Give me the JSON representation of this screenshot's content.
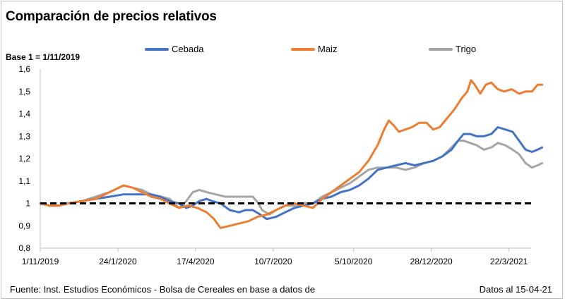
{
  "chart_data": {
    "type": "line",
    "title": "Comparación de precios relativos",
    "base_note": "Base 1 = 1/11/2019",
    "xlabel": "",
    "ylabel": "",
    "ylim": [
      0.8,
      1.6
    ],
    "y_ticks": [
      "0,8",
      "0,9",
      "1",
      "1,1",
      "1,2",
      "1,3",
      "1,4",
      "1,5",
      "1,6"
    ],
    "y_tick_values": [
      0.8,
      0.9,
      1.0,
      1.1,
      1.2,
      1.3,
      1.4,
      1.5,
      1.6
    ],
    "x_ticks": [
      "1/11/2019",
      "24/1/2020",
      "17/4/2020",
      "10/7/2020",
      "5/10/2020",
      "28/12/2020",
      "22/3/2021"
    ],
    "x_domain_days": [
      0,
      531
    ],
    "x_tick_days": [
      0,
      84,
      168,
      252,
      339,
      423,
      507
    ],
    "reference_line": {
      "y": 1.0,
      "style": "dashed",
      "color": "#000000"
    },
    "legend_position": "top",
    "series": [
      {
        "name": "Cebada",
        "color": "#4472C4",
        "points": [
          [
            0,
            1.0
          ],
          [
            10,
            0.99
          ],
          [
            20,
            0.99
          ],
          [
            30,
            1.0
          ],
          [
            45,
            1.01
          ],
          [
            60,
            1.02
          ],
          [
            75,
            1.03
          ],
          [
            90,
            1.04
          ],
          [
            100,
            1.04
          ],
          [
            110,
            1.04
          ],
          [
            120,
            1.04
          ],
          [
            130,
            1.03
          ],
          [
            140,
            1.01
          ],
          [
            150,
            1.0
          ],
          [
            158,
            0.98
          ],
          [
            165,
            0.99
          ],
          [
            172,
            1.01
          ],
          [
            180,
            1.02
          ],
          [
            186,
            1.01
          ],
          [
            195,
            1.0
          ],
          [
            205,
            0.97
          ],
          [
            215,
            0.96
          ],
          [
            222,
            0.97
          ],
          [
            230,
            0.97
          ],
          [
            238,
            0.95
          ],
          [
            245,
            0.93
          ],
          [
            255,
            0.94
          ],
          [
            265,
            0.96
          ],
          [
            275,
            0.98
          ],
          [
            285,
            0.99
          ],
          [
            295,
            1.0
          ],
          [
            305,
            1.02
          ],
          [
            315,
            1.03
          ],
          [
            325,
            1.05
          ],
          [
            335,
            1.06
          ],
          [
            345,
            1.08
          ],
          [
            355,
            1.11
          ],
          [
            365,
            1.15
          ],
          [
            375,
            1.16
          ],
          [
            385,
            1.17
          ],
          [
            395,
            1.18
          ],
          [
            405,
            1.17
          ],
          [
            415,
            1.18
          ],
          [
            425,
            1.19
          ],
          [
            435,
            1.21
          ],
          [
            445,
            1.24
          ],
          [
            452,
            1.28
          ],
          [
            458,
            1.31
          ],
          [
            465,
            1.31
          ],
          [
            472,
            1.3
          ],
          [
            480,
            1.3
          ],
          [
            488,
            1.31
          ],
          [
            495,
            1.34
          ],
          [
            503,
            1.33
          ],
          [
            511,
            1.32
          ],
          [
            518,
            1.28
          ],
          [
            525,
            1.24
          ],
          [
            532,
            1.23
          ],
          [
            538,
            1.24
          ],
          [
            543,
            1.25
          ]
        ]
      },
      {
        "name": "Maiz",
        "color": "#ED7D31",
        "points": [
          [
            0,
            1.0
          ],
          [
            10,
            0.99
          ],
          [
            20,
            0.99
          ],
          [
            30,
            1.0
          ],
          [
            45,
            1.01
          ],
          [
            60,
            1.02
          ],
          [
            75,
            1.05
          ],
          [
            90,
            1.08
          ],
          [
            100,
            1.07
          ],
          [
            110,
            1.05
          ],
          [
            120,
            1.03
          ],
          [
            130,
            1.02
          ],
          [
            140,
            1.0
          ],
          [
            150,
            0.98
          ],
          [
            160,
            0.99
          ],
          [
            170,
            0.98
          ],
          [
            180,
            0.96
          ],
          [
            188,
            0.93
          ],
          [
            195,
            0.89
          ],
          [
            205,
            0.9
          ],
          [
            215,
            0.91
          ],
          [
            225,
            0.92
          ],
          [
            235,
            0.94
          ],
          [
            245,
            0.95
          ],
          [
            255,
            0.97
          ],
          [
            265,
            0.99
          ],
          [
            275,
            1.0
          ],
          [
            285,
            0.99
          ],
          [
            295,
            0.98
          ],
          [
            305,
            1.02
          ],
          [
            315,
            1.05
          ],
          [
            325,
            1.08
          ],
          [
            335,
            1.11
          ],
          [
            345,
            1.14
          ],
          [
            355,
            1.19
          ],
          [
            365,
            1.26
          ],
          [
            372,
            1.33
          ],
          [
            377,
            1.37
          ],
          [
            382,
            1.35
          ],
          [
            388,
            1.32
          ],
          [
            395,
            1.33
          ],
          [
            402,
            1.34
          ],
          [
            410,
            1.36
          ],
          [
            418,
            1.36
          ],
          [
            425,
            1.33
          ],
          [
            432,
            1.34
          ],
          [
            440,
            1.38
          ],
          [
            448,
            1.42
          ],
          [
            456,
            1.47
          ],
          [
            462,
            1.5
          ],
          [
            466,
            1.55
          ],
          [
            470,
            1.53
          ],
          [
            476,
            1.49
          ],
          [
            482,
            1.53
          ],
          [
            488,
            1.54
          ],
          [
            495,
            1.51
          ],
          [
            502,
            1.5
          ],
          [
            510,
            1.51
          ],
          [
            518,
            1.49
          ],
          [
            525,
            1.5
          ],
          [
            532,
            1.5
          ],
          [
            538,
            1.53
          ],
          [
            543,
            1.53
          ]
        ]
      },
      {
        "name": "Trigo",
        "color": "#A5A5A5",
        "points": [
          [
            0,
            1.0
          ],
          [
            10,
            0.99
          ],
          [
            20,
            0.99
          ],
          [
            30,
            1.0
          ],
          [
            45,
            1.01
          ],
          [
            60,
            1.03
          ],
          [
            75,
            1.05
          ],
          [
            90,
            1.08
          ],
          [
            100,
            1.07
          ],
          [
            110,
            1.06
          ],
          [
            120,
            1.04
          ],
          [
            130,
            1.03
          ],
          [
            140,
            1.02
          ],
          [
            150,
            0.98
          ],
          [
            158,
            1.01
          ],
          [
            165,
            1.05
          ],
          [
            172,
            1.06
          ],
          [
            180,
            1.05
          ],
          [
            190,
            1.04
          ],
          [
            200,
            1.03
          ],
          [
            210,
            1.03
          ],
          [
            220,
            1.03
          ],
          [
            230,
            1.03
          ],
          [
            236,
            1.0
          ],
          [
            240,
            0.97
          ],
          [
            248,
            0.95
          ],
          [
            255,
            0.97
          ],
          [
            265,
            0.99
          ],
          [
            275,
            0.99
          ],
          [
            285,
            1.0
          ],
          [
            295,
            1.0
          ],
          [
            305,
            1.03
          ],
          [
            315,
            1.05
          ],
          [
            325,
            1.07
          ],
          [
            335,
            1.09
          ],
          [
            345,
            1.12
          ],
          [
            355,
            1.15
          ],
          [
            365,
            1.16
          ],
          [
            375,
            1.16
          ],
          [
            385,
            1.16
          ],
          [
            395,
            1.15
          ],
          [
            405,
            1.16
          ],
          [
            415,
            1.18
          ],
          [
            425,
            1.19
          ],
          [
            435,
            1.21
          ],
          [
            445,
            1.25
          ],
          [
            452,
            1.28
          ],
          [
            458,
            1.28
          ],
          [
            465,
            1.27
          ],
          [
            472,
            1.26
          ],
          [
            480,
            1.24
          ],
          [
            488,
            1.25
          ],
          [
            495,
            1.27
          ],
          [
            503,
            1.26
          ],
          [
            511,
            1.24
          ],
          [
            518,
            1.22
          ],
          [
            525,
            1.18
          ],
          [
            532,
            1.16
          ],
          [
            538,
            1.17
          ],
          [
            543,
            1.18
          ]
        ]
      }
    ]
  },
  "footer": {
    "source": "Fuente: Inst. Estudios Económicos - Bolsa de Cereales en base a datos de",
    "date_note": "Datos al 15-04-21"
  }
}
